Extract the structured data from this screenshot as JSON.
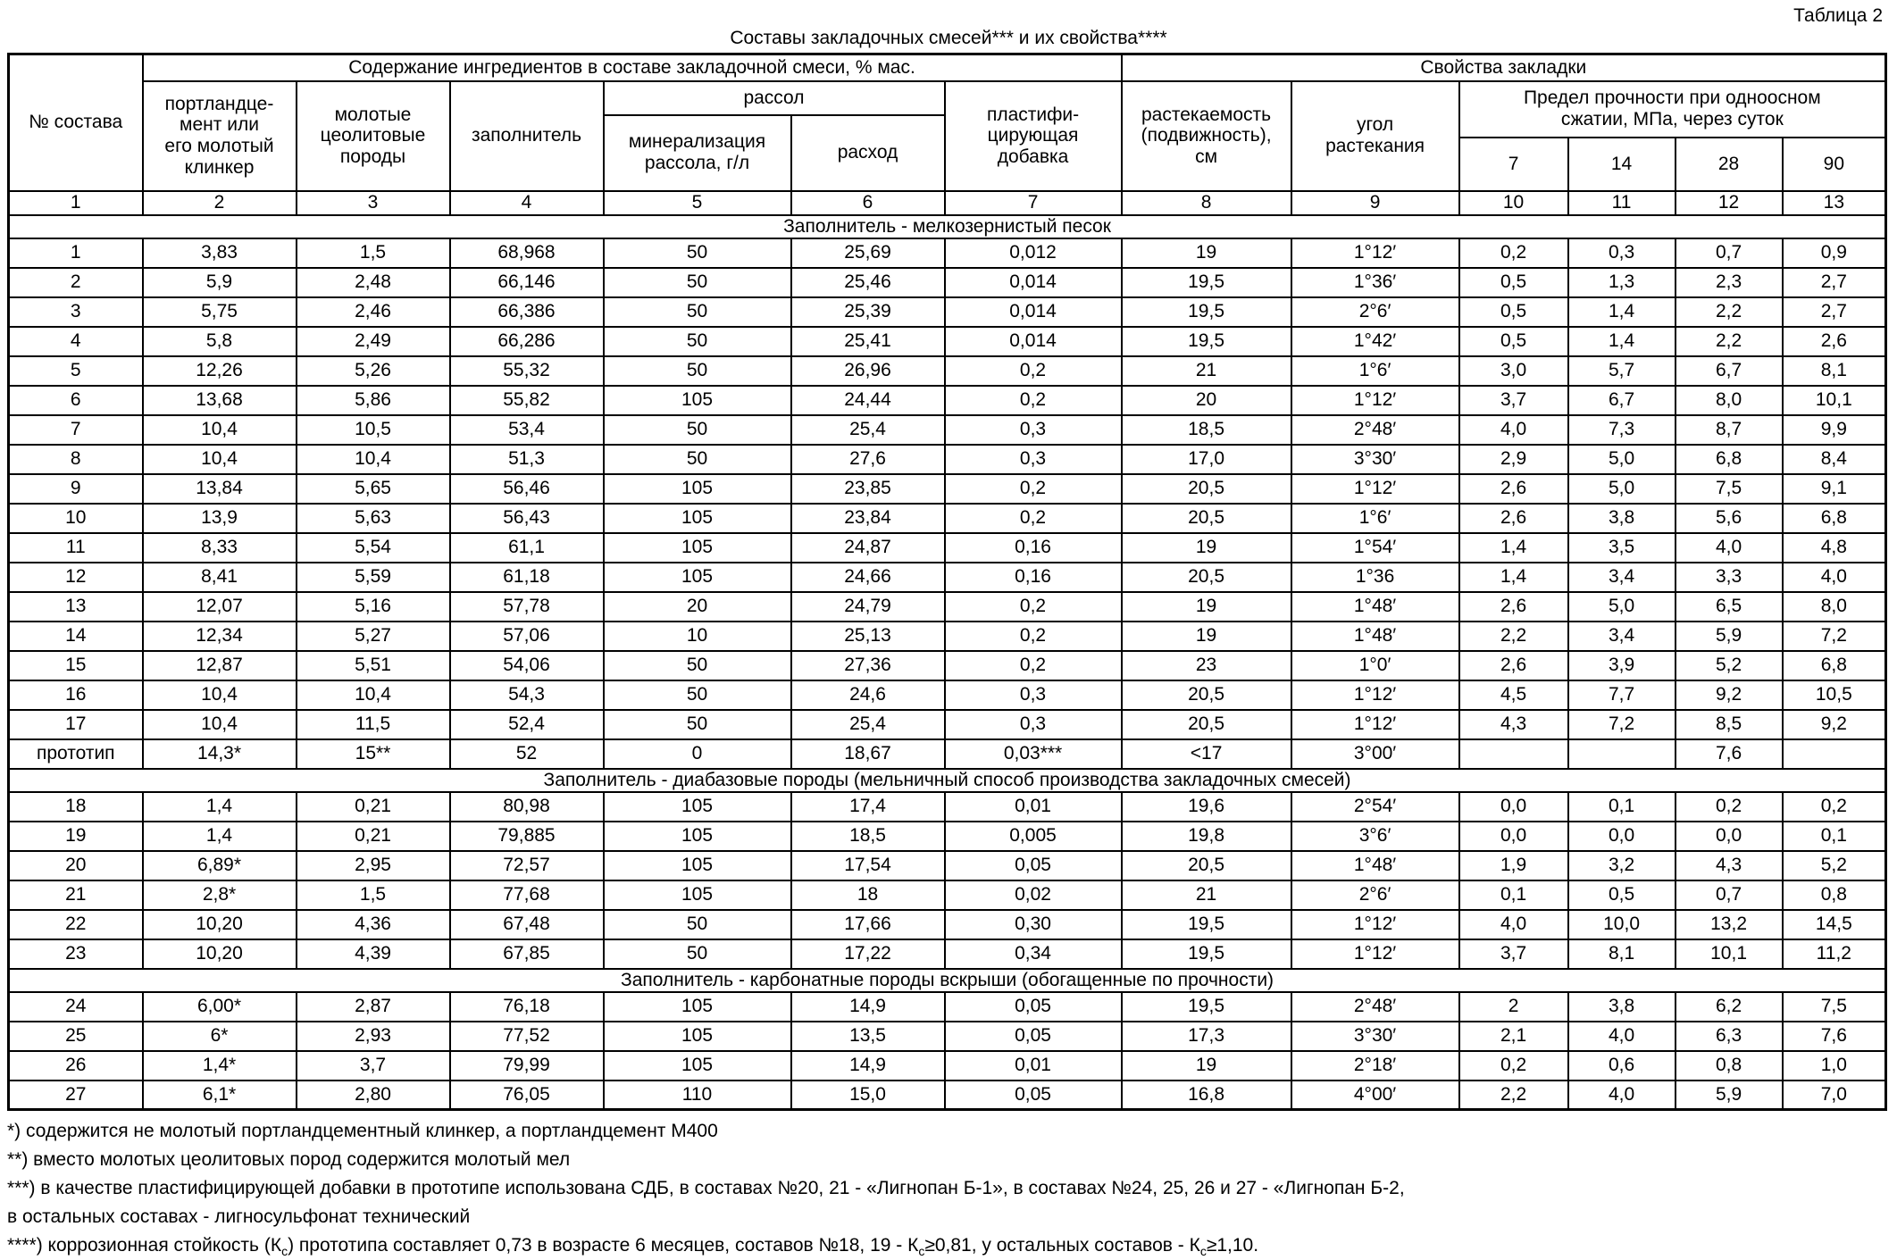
{
  "page_label": "Таблица 2",
  "title": "Составы закладочных смесей*** и их свойства****",
  "header": {
    "col_no": "№ состава",
    "group_ingredients": "Содержание ингредиентов в составе закладочной смеси, % мас.",
    "group_properties": "Свойства закладки",
    "col_cement": "портландце-\nмент или\nего молотый\nклинкер",
    "col_zeolite": "молотые\nцеолитовые\nпороды",
    "col_filler": "заполнитель",
    "group_brine": "рассол",
    "col_brine_mineralization": "минерализация\nрассола, г/л",
    "col_brine_consumption": "расход",
    "col_plasticizer": "пластифи-\nцирующая\nдобавка",
    "col_flowability": "растекаемость\n(подвижность),\nсм",
    "col_angle": "угол\nрастекания",
    "group_strength": "Предел прочности при одноосном\nсжатии, МПа, через суток",
    "strength_days": [
      "7",
      "14",
      "28",
      "90"
    ],
    "col_numbers": [
      "1",
      "2",
      "3",
      "4",
      "5",
      "6",
      "7",
      "8",
      "9",
      "10",
      "11",
      "12",
      "13"
    ]
  },
  "sections": [
    {
      "title": "Заполнитель - мелкозернистый песок",
      "rows": [
        [
          "1",
          "3,83",
          "1,5",
          "68,968",
          "50",
          "25,69",
          "0,012",
          "19",
          "1°12′",
          "0,2",
          "0,3",
          "0,7",
          "0,9"
        ],
        [
          "2",
          "5,9",
          "2,48",
          "66,146",
          "50",
          "25,46",
          "0,014",
          "19,5",
          "1°36′",
          "0,5",
          "1,3",
          "2,3",
          "2,7"
        ],
        [
          "3",
          "5,75",
          "2,46",
          "66,386",
          "50",
          "25,39",
          "0,014",
          "19,5",
          "2°6′",
          "0,5",
          "1,4",
          "2,2",
          "2,7"
        ],
        [
          "4",
          "5,8",
          "2,49",
          "66,286",
          "50",
          "25,41",
          "0,014",
          "19,5",
          "1°42′",
          "0,5",
          "1,4",
          "2,2",
          "2,6"
        ],
        [
          "5",
          "12,26",
          "5,26",
          "55,32",
          "50",
          "26,96",
          "0,2",
          "21",
          "1°6′",
          "3,0",
          "5,7",
          "6,7",
          "8,1"
        ],
        [
          "6",
          "13,68",
          "5,86",
          "55,82",
          "105",
          "24,44",
          "0,2",
          "20",
          "1°12′",
          "3,7",
          "6,7",
          "8,0",
          "10,1"
        ],
        [
          "7",
          "10,4",
          "10,5",
          "53,4",
          "50",
          "25,4",
          "0,3",
          "18,5",
          "2°48′",
          "4,0",
          "7,3",
          "8,7",
          "9,9"
        ],
        [
          "8",
          "10,4",
          "10,4",
          "51,3",
          "50",
          "27,6",
          "0,3",
          "17,0",
          "3°30′",
          "2,9",
          "5,0",
          "6,8",
          "8,4"
        ],
        [
          "9",
          "13,84",
          "5,65",
          "56,46",
          "105",
          "23,85",
          "0,2",
          "20,5",
          "1°12′",
          "2,6",
          "5,0",
          "7,5",
          "9,1"
        ],
        [
          "10",
          "13,9",
          "5,63",
          "56,43",
          "105",
          "23,84",
          "0,2",
          "20,5",
          "1°6′",
          "2,6",
          "3,8",
          "5,6",
          "6,8"
        ],
        [
          "11",
          "8,33",
          "5,54",
          "61,1",
          "105",
          "24,87",
          "0,16",
          "19",
          "1°54′",
          "1,4",
          "3,5",
          "4,0",
          "4,8"
        ],
        [
          "12",
          "8,41",
          "5,59",
          "61,18",
          "105",
          "24,66",
          "0,16",
          "20,5",
          "1°36",
          "1,4",
          "3,4",
          "3,3",
          "4,0"
        ],
        [
          "13",
          "12,07",
          "5,16",
          "57,78",
          "20",
          "24,79",
          "0,2",
          "19",
          "1°48′",
          "2,6",
          "5,0",
          "6,5",
          "8,0"
        ],
        [
          "14",
          "12,34",
          "5,27",
          "57,06",
          "10",
          "25,13",
          "0,2",
          "19",
          "1°48′",
          "2,2",
          "3,4",
          "5,9",
          "7,2"
        ],
        [
          "15",
          "12,87",
          "5,51",
          "54,06",
          "50",
          "27,36",
          "0,2",
          "23",
          "1°0′",
          "2,6",
          "3,9",
          "5,2",
          "6,8"
        ],
        [
          "16",
          "10,4",
          "10,4",
          "54,3",
          "50",
          "24,6",
          "0,3",
          "20,5",
          "1°12′",
          "4,5",
          "7,7",
          "9,2",
          "10,5"
        ],
        [
          "17",
          "10,4",
          "11,5",
          "52,4",
          "50",
          "25,4",
          "0,3",
          "20,5",
          "1°12′",
          "4,3",
          "7,2",
          "8,5",
          "9,2"
        ],
        [
          "прототип",
          "14,3*",
          "15**",
          "52",
          "0",
          "18,67",
          "0,03***",
          "<17",
          "3°00′",
          "",
          "",
          "7,6",
          ""
        ]
      ]
    },
    {
      "title": "Заполнитель - диабазовые породы (мельничный способ производства закладочных смесей)",
      "rows": [
        [
          "18",
          "1,4",
          "0,21",
          "80,98",
          "105",
          "17,4",
          "0,01",
          "19,6",
          "2°54′",
          "0,0",
          "0,1",
          "0,2",
          "0,2"
        ],
        [
          "19",
          "1,4",
          "0,21",
          "79,885",
          "105",
          "18,5",
          "0,005",
          "19,8",
          "3°6′",
          "0,0",
          "0,0",
          "0,0",
          "0,1"
        ],
        [
          "20",
          "6,89*",
          "2,95",
          "72,57",
          "105",
          "17,54",
          "0,05",
          "20,5",
          "1°48′",
          "1,9",
          "3,2",
          "4,3",
          "5,2"
        ],
        [
          "21",
          "2,8*",
          "1,5",
          "77,68",
          "105",
          "18",
          "0,02",
          "21",
          "2°6′",
          "0,1",
          "0,5",
          "0,7",
          "0,8"
        ],
        [
          "22",
          "10,20",
          "4,36",
          "67,48",
          "50",
          "17,66",
          "0,30",
          "19,5",
          "1°12′",
          "4,0",
          "10,0",
          "13,2",
          "14,5"
        ],
        [
          "23",
          "10,20",
          "4,39",
          "67,85",
          "50",
          "17,22",
          "0,34",
          "19,5",
          "1°12′",
          "3,7",
          "8,1",
          "10,1",
          "11,2"
        ]
      ]
    },
    {
      "title": "Заполнитель - карбонатные породы вскрыши (обогащенные по прочности)",
      "rows": [
        [
          "24",
          "6,00*",
          "2,87",
          "76,18",
          "105",
          "14,9",
          "0,05",
          "19,5",
          "2°48′",
          "2",
          "3,8",
          "6,2",
          "7,5"
        ],
        [
          "25",
          "6*",
          "2,93",
          "77,52",
          "105",
          "13,5",
          "0,05",
          "17,3",
          "3°30′",
          "2,1",
          "4,0",
          "6,3",
          "7,6"
        ],
        [
          "26",
          "1,4*",
          "3,7",
          "79,99",
          "105",
          "14,9",
          "0,01",
          "19",
          "2°18′",
          "0,2",
          "0,6",
          "0,8",
          "1,0"
        ],
        [
          "27",
          "6,1*",
          "2,80",
          "76,05",
          "110",
          "15,0",
          "0,05",
          "16,8",
          "4°00′",
          "2,2",
          "4,0",
          "5,9",
          "7,0"
        ]
      ]
    }
  ],
  "footnotes": {
    "fn1": "*) содержится не молотый портландцементный клинкер, а портландцемент М400",
    "fn2": "**) вместо молотых цеолитовых пород содержится молотый мел",
    "fn3a": "***) в качестве пластифицирующей добавки в прототипе использована СДБ, в составах №20, 21 - «Лигнопан Б-1», в составах №24, 25, 26 и 27 - «Лигнопан Б-2,",
    "fn3b": "в остальных составах - лигносульфонат технический",
    "fn4": {
      "p1": "****) коррозионная стойкость (К",
      "s1": "с",
      "p2": ") прототипа составляет 0,73 в возрасте 6 месяцев, составов №18, 19 - К",
      "s2": "с",
      "p3": "≥0,81, у остальных составов - К",
      "s3": "с",
      "p4": "≥1,10."
    }
  }
}
